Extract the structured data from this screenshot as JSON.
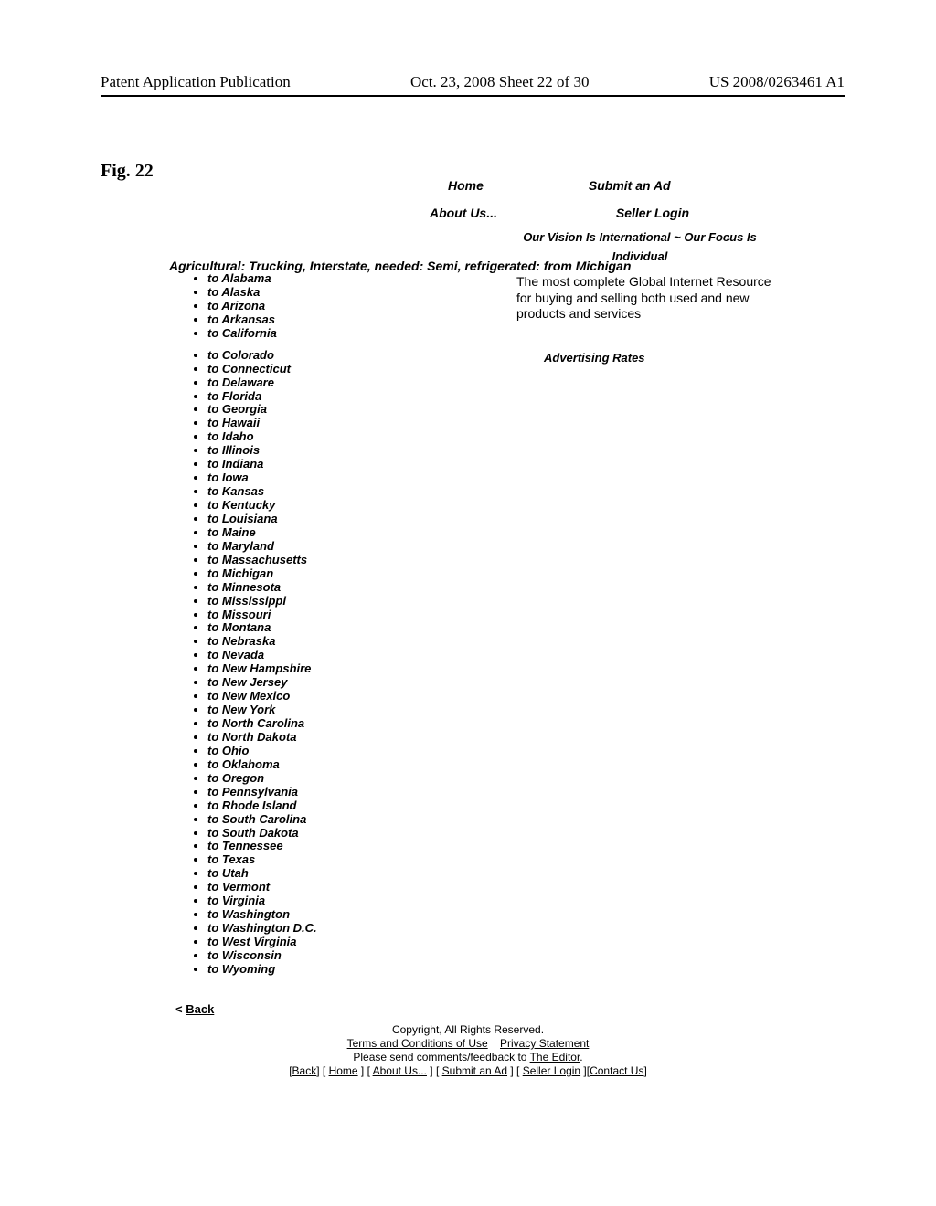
{
  "header": {
    "left": "Patent Application Publication",
    "center": "Oct. 23, 2008  Sheet 22 of 30",
    "right": "US 2008/0263461 A1"
  },
  "fig_label": "Fig. 22",
  "nav": {
    "home": "Home",
    "submit": "Submit an Ad",
    "about": "About Us...",
    "seller_login": "Seller Login"
  },
  "tagline": {
    "line1": "Our Vision Is International ~ Our Focus Is",
    "line2": "Individual"
  },
  "category_title": "Agricultural: Trucking, Interstate, needed: Semi, refrigerated: from Michigan",
  "states": [
    "to Alabama",
    "to Alaska",
    "to Arizona",
    "to Arkansas",
    "to California",
    "to Colorado",
    "to Connecticut",
    "to Delaware",
    "to Florida",
    "to Georgia",
    "to Hawaii",
    "to Idaho",
    "to Illinois",
    "to Indiana",
    "to Iowa",
    "to Kansas",
    "to Kentucky",
    "to Louisiana",
    "to Maine",
    "to Maryland",
    "to Massachusetts",
    "to Michigan",
    "to Minnesota",
    "to Mississippi",
    "to Missouri",
    "to Montana",
    "to Nebraska",
    "to Nevada",
    "to New Hampshire",
    "to New Jersey",
    "to New Mexico",
    "to New York",
    "to North Carolina",
    "to North Dakota",
    "to Ohio",
    "to Oklahoma",
    "to Oregon",
    "to Pennsylvania",
    "to Rhode Island",
    "to South Carolina",
    "to South Dakota",
    "to Tennessee",
    "to Texas",
    "to Utah",
    "to Vermont",
    "to Virginia",
    "to Washington",
    "to Washington D.C.",
    "to West Virginia",
    "to Wisconsin",
    "to Wyoming"
  ],
  "right_desc": "The most complete Global Internet Resource for buying and selling both used and new products and services",
  "adv_rates": "Advertising Rates",
  "back": {
    "lt": "<",
    "label": "Back"
  },
  "footer": {
    "copyright": "Copyright, All Rights Reserved.",
    "terms": "Terms and Conditions of Use",
    "privacy": "Privacy Statement",
    "feedback_prefix": "Please send comments/feedback to ",
    "editor": "The Editor",
    "links": {
      "back": "Back",
      "home": "Home",
      "about": "About Us...",
      "submit": "Submit an Ad",
      "seller": "Seller Login",
      "contact": "Contact Us"
    }
  }
}
